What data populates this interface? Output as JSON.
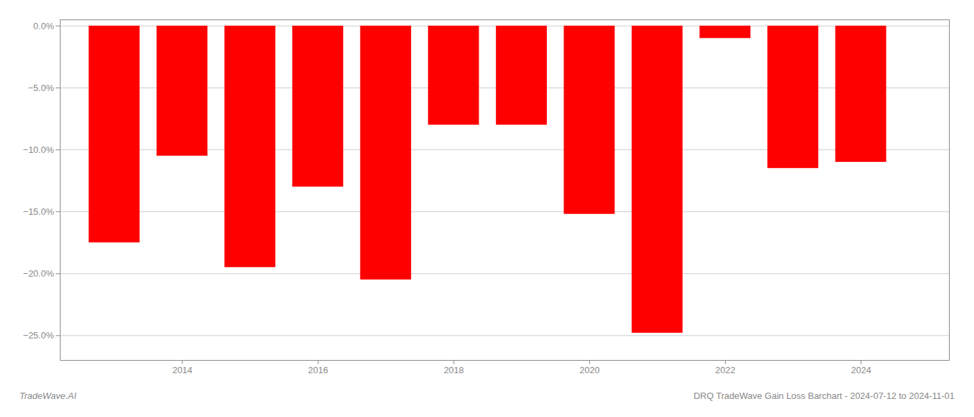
{
  "chart_data": {
    "type": "bar",
    "title": "DRQ TradeWave Gain Loss Barchart - 2024-07-12 to 2024-11-01",
    "annotations": [
      "TradeWave.AI"
    ],
    "x": [
      2013,
      2014,
      2015,
      2016,
      2017,
      2018,
      2019,
      2020,
      2021,
      2022,
      2023,
      2024
    ],
    "values": [
      -17.5,
      -10.5,
      -19.5,
      -13.0,
      -20.5,
      -8.0,
      -8.0,
      -15.2,
      -24.8,
      -1.0,
      -11.5,
      -11.0
    ],
    "color": "#ff0000",
    "xlim": [
      2012.2,
      2025.3
    ],
    "xticks": [
      2014,
      2016,
      2018,
      2020,
      2022,
      2024
    ],
    "ylim": [
      -27,
      0.5
    ],
    "yticks": [
      {
        "value": 0.0,
        "label": "0.0%"
      },
      {
        "value": -5.0,
        "label": "−5.0%"
      },
      {
        "value": -10.0,
        "label": "−10.0%"
      },
      {
        "value": -15.0,
        "label": "−15.0%"
      },
      {
        "value": -20.0,
        "label": "−20.0%"
      },
      {
        "value": -25.0,
        "label": "−25.0%"
      }
    ],
    "grid": true
  }
}
